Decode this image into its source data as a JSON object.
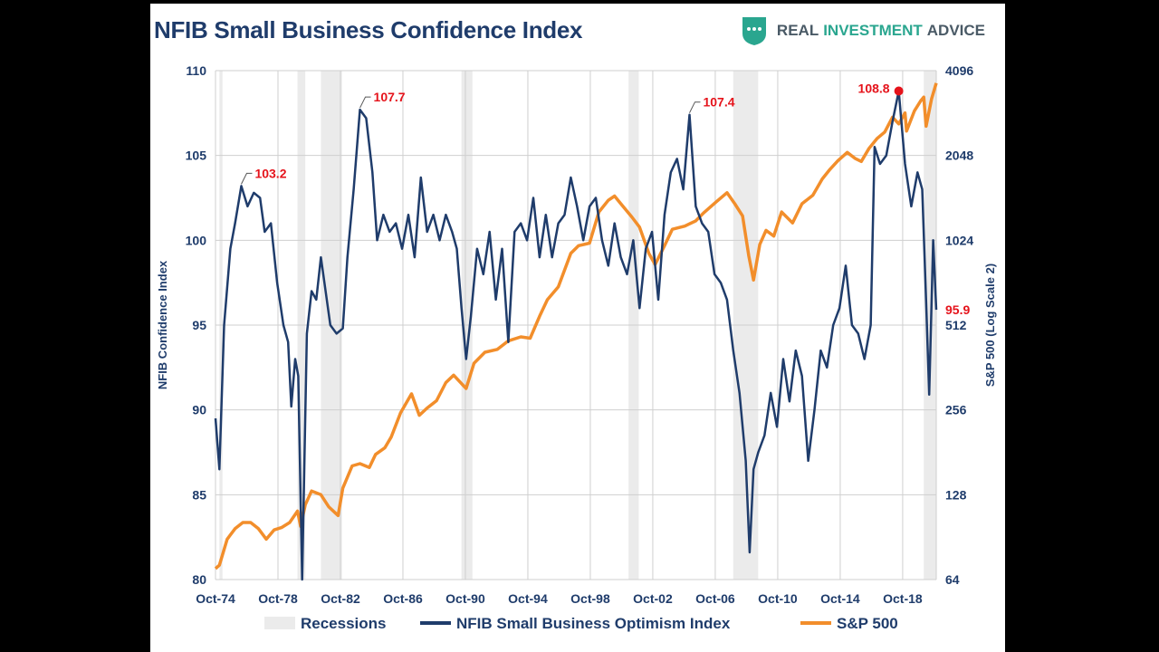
{
  "brand": {
    "word1": "REAL",
    "word2": "INVESTMENT",
    "word3": "ADVICE",
    "accent_color": "#2aa68f",
    "logo_icon": "shield-chat-icon"
  },
  "chart_data": {
    "type": "line",
    "title": "NFIB Small Business Confidence Index",
    "ylabel": "NFIB Confidence Index",
    "y2label": "S&P 500 (Log Scale 2)",
    "xlim": [
      1974.75,
      2020.9
    ],
    "ylim": [
      80,
      110
    ],
    "y2lim": [
      64,
      4096
    ],
    "x_ticks": [
      {
        "label": "Oct-74",
        "x": 1974.75
      },
      {
        "label": "Oct-78",
        "x": 1978.75
      },
      {
        "label": "Oct-82",
        "x": 1982.75
      },
      {
        "label": "Oct-86",
        "x": 1986.75
      },
      {
        "label": "Oct-90",
        "x": 1990.75
      },
      {
        "label": "Oct-94",
        "x": 1994.75
      },
      {
        "label": "Oct-98",
        "x": 1998.75
      },
      {
        "label": "Oct-02",
        "x": 2002.75
      },
      {
        "label": "Oct-06",
        "x": 2006.75
      },
      {
        "label": "Oct-10",
        "x": 2010.75
      },
      {
        "label": "Oct-14",
        "x": 2014.75
      },
      {
        "label": "Oct-18",
        "x": 2018.75
      }
    ],
    "y_ticks": [
      "80",
      "85",
      "90",
      "95",
      "100",
      "105",
      "110"
    ],
    "y2_ticks": [
      "64",
      "128",
      "256",
      "512",
      "1024",
      "2048",
      "4096"
    ],
    "recessions": [
      [
        1975.0,
        1975.2
      ],
      [
        1980.0,
        1980.5
      ],
      [
        1981.5,
        1982.85
      ],
      [
        1990.5,
        1991.2
      ],
      [
        2001.2,
        2001.85
      ],
      [
        2007.9,
        2009.5
      ],
      [
        2020.1,
        2020.9
      ]
    ],
    "series": [
      {
        "name": "NFIB Small Business Optimism Index",
        "color": "#1f3c6b",
        "points": [
          [
            1974.75,
            89.5
          ],
          [
            1975.0,
            86.5
          ],
          [
            1975.3,
            95.0
          ],
          [
            1975.7,
            99.5
          ],
          [
            1976.0,
            101.0
          ],
          [
            1976.4,
            103.2
          ],
          [
            1976.8,
            102.0
          ],
          [
            1977.2,
            102.8
          ],
          [
            1977.6,
            102.5
          ],
          [
            1977.9,
            100.5
          ],
          [
            1978.3,
            101.0
          ],
          [
            1978.7,
            97.5
          ],
          [
            1979.1,
            95.0
          ],
          [
            1979.4,
            94.0
          ],
          [
            1979.6,
            90.2
          ],
          [
            1979.85,
            93.0
          ],
          [
            1980.05,
            92.0
          ],
          [
            1980.3,
            80.0
          ],
          [
            1980.6,
            94.5
          ],
          [
            1980.9,
            97.0
          ],
          [
            1981.2,
            96.5
          ],
          [
            1981.5,
            99.0
          ],
          [
            1981.8,
            97.0
          ],
          [
            1982.1,
            95.0
          ],
          [
            1982.5,
            94.5
          ],
          [
            1982.9,
            94.8
          ],
          [
            1983.2,
            99.0
          ],
          [
            1983.6,
            103.0
          ],
          [
            1984.0,
            107.7
          ],
          [
            1984.4,
            107.2
          ],
          [
            1984.8,
            104.0
          ],
          [
            1985.1,
            100.0
          ],
          [
            1985.5,
            101.5
          ],
          [
            1985.9,
            100.5
          ],
          [
            1986.3,
            101.0
          ],
          [
            1986.7,
            99.5
          ],
          [
            1987.1,
            101.5
          ],
          [
            1987.5,
            99.0
          ],
          [
            1987.9,
            103.7
          ],
          [
            1988.3,
            100.5
          ],
          [
            1988.7,
            101.5
          ],
          [
            1989.1,
            100.0
          ],
          [
            1989.5,
            101.5
          ],
          [
            1989.9,
            100.5
          ],
          [
            1990.2,
            99.5
          ],
          [
            1990.5,
            96.0
          ],
          [
            1990.8,
            93.0
          ],
          [
            1991.1,
            95.5
          ],
          [
            1991.5,
            99.5
          ],
          [
            1991.9,
            98.0
          ],
          [
            1992.3,
            100.5
          ],
          [
            1992.7,
            96.5
          ],
          [
            1993.1,
            99.5
          ],
          [
            1993.5,
            94.0
          ],
          [
            1993.9,
            100.5
          ],
          [
            1994.3,
            101.0
          ],
          [
            1994.7,
            100.0
          ],
          [
            1995.1,
            102.5
          ],
          [
            1995.5,
            99.0
          ],
          [
            1995.9,
            101.5
          ],
          [
            1996.3,
            99.0
          ],
          [
            1996.7,
            101.0
          ],
          [
            1997.1,
            101.5
          ],
          [
            1997.5,
            103.7
          ],
          [
            1997.9,
            102.0
          ],
          [
            1998.3,
            100.0
          ],
          [
            1998.7,
            102.0
          ],
          [
            1999.1,
            102.5
          ],
          [
            1999.5,
            100.0
          ],
          [
            1999.9,
            98.5
          ],
          [
            2000.3,
            101.0
          ],
          [
            2000.7,
            99.0
          ],
          [
            2001.1,
            98.0
          ],
          [
            2001.5,
            100.0
          ],
          [
            2001.9,
            96.0
          ],
          [
            2002.3,
            99.5
          ],
          [
            2002.7,
            100.5
          ],
          [
            2003.1,
            96.5
          ],
          [
            2003.5,
            101.5
          ],
          [
            2003.9,
            104.0
          ],
          [
            2004.3,
            104.8
          ],
          [
            2004.7,
            103.0
          ],
          [
            2005.1,
            107.4
          ],
          [
            2005.5,
            102.0
          ],
          [
            2005.9,
            101.0
          ],
          [
            2006.3,
            100.5
          ],
          [
            2006.7,
            98.0
          ],
          [
            2007.1,
            97.5
          ],
          [
            2007.5,
            96.5
          ],
          [
            2007.9,
            93.5
          ],
          [
            2008.3,
            91.0
          ],
          [
            2008.7,
            87.0
          ],
          [
            2008.95,
            81.6
          ],
          [
            2009.2,
            86.5
          ],
          [
            2009.5,
            87.5
          ],
          [
            2009.9,
            88.5
          ],
          [
            2010.3,
            91.0
          ],
          [
            2010.7,
            89.0
          ],
          [
            2011.1,
            93.0
          ],
          [
            2011.5,
            90.5
          ],
          [
            2011.9,
            93.5
          ],
          [
            2012.3,
            92.0
          ],
          [
            2012.7,
            87.0
          ],
          [
            2013.1,
            90.0
          ],
          [
            2013.5,
            93.5
          ],
          [
            2013.9,
            92.5
          ],
          [
            2014.3,
            95.0
          ],
          [
            2014.7,
            96.0
          ],
          [
            2015.1,
            98.5
          ],
          [
            2015.5,
            95.0
          ],
          [
            2015.9,
            94.5
          ],
          [
            2016.3,
            93.0
          ],
          [
            2016.7,
            95.0
          ],
          [
            2016.95,
            105.5
          ],
          [
            2017.3,
            104.5
          ],
          [
            2017.7,
            105.0
          ],
          [
            2018.1,
            107.0
          ],
          [
            2018.5,
            108.8
          ],
          [
            2018.9,
            104.5
          ],
          [
            2019.3,
            102.0
          ],
          [
            2019.7,
            104.0
          ],
          [
            2020.0,
            103.0
          ],
          [
            2020.25,
            96.4
          ],
          [
            2020.45,
            90.9
          ],
          [
            2020.7,
            100.0
          ],
          [
            2020.9,
            95.9
          ]
        ]
      },
      {
        "name": "S&P 500",
        "color": "#f28e2b",
        "points": [
          [
            1974.75,
            70
          ],
          [
            1975.0,
            72
          ],
          [
            1975.5,
            89
          ],
          [
            1976.0,
            97
          ],
          [
            1976.5,
            102
          ],
          [
            1977.0,
            102
          ],
          [
            1977.5,
            97
          ],
          [
            1978.0,
            89
          ],
          [
            1978.5,
            96
          ],
          [
            1979.0,
            98
          ],
          [
            1979.5,
            102
          ],
          [
            1980.0,
            112
          ],
          [
            1980.2,
            99
          ],
          [
            1980.5,
            118
          ],
          [
            1980.9,
            132
          ],
          [
            1981.5,
            128
          ],
          [
            1982.0,
            116
          ],
          [
            1982.6,
            108
          ],
          [
            1982.9,
            135
          ],
          [
            1983.5,
            162
          ],
          [
            1984.0,
            165
          ],
          [
            1984.6,
            160
          ],
          [
            1985.0,
            178
          ],
          [
            1985.6,
            188
          ],
          [
            1986.0,
            205
          ],
          [
            1986.6,
            250
          ],
          [
            1987.3,
            292
          ],
          [
            1987.8,
            245
          ],
          [
            1988.3,
            260
          ],
          [
            1988.9,
            276
          ],
          [
            1989.5,
            320
          ],
          [
            1990.0,
            340
          ],
          [
            1990.8,
            305
          ],
          [
            1991.3,
            375
          ],
          [
            1992.0,
            410
          ],
          [
            1992.8,
            420
          ],
          [
            1993.5,
            450
          ],
          [
            1994.3,
            465
          ],
          [
            1994.9,
            460
          ],
          [
            1995.5,
            550
          ],
          [
            1996.0,
            630
          ],
          [
            1996.7,
            700
          ],
          [
            1997.5,
            920
          ],
          [
            1998.0,
            980
          ],
          [
            1998.7,
            1000
          ],
          [
            1999.3,
            1290
          ],
          [
            1999.9,
            1420
          ],
          [
            2000.3,
            1470
          ],
          [
            2000.8,
            1360
          ],
          [
            2001.4,
            1240
          ],
          [
            2001.9,
            1140
          ],
          [
            2002.5,
            920
          ],
          [
            2002.9,
            840
          ],
          [
            2003.5,
            980
          ],
          [
            2004.0,
            1120
          ],
          [
            2004.8,
            1150
          ],
          [
            2005.5,
            1200
          ],
          [
            2006.0,
            1280
          ],
          [
            2006.8,
            1400
          ],
          [
            2007.5,
            1510
          ],
          [
            2008.0,
            1380
          ],
          [
            2008.5,
            1250
          ],
          [
            2008.9,
            900
          ],
          [
            2009.2,
            740
          ],
          [
            2009.6,
            990
          ],
          [
            2010.0,
            1110
          ],
          [
            2010.5,
            1060
          ],
          [
            2011.0,
            1290
          ],
          [
            2011.7,
            1180
          ],
          [
            2012.3,
            1380
          ],
          [
            2013.0,
            1480
          ],
          [
            2013.6,
            1690
          ],
          [
            2014.1,
            1830
          ],
          [
            2014.6,
            1960
          ],
          [
            2015.2,
            2100
          ],
          [
            2015.7,
            2000
          ],
          [
            2016.1,
            1950
          ],
          [
            2016.6,
            2170
          ],
          [
            2017.1,
            2350
          ],
          [
            2017.6,
            2480
          ],
          [
            2018.1,
            2800
          ],
          [
            2018.5,
            2650
          ],
          [
            2018.9,
            2900
          ],
          [
            2019.0,
            2500
          ],
          [
            2019.5,
            2950
          ],
          [
            2019.9,
            3200
          ],
          [
            2020.1,
            3300
          ],
          [
            2020.25,
            2600
          ],
          [
            2020.6,
            3250
          ],
          [
            2020.9,
            3700
          ]
        ]
      }
    ],
    "annotations": [
      {
        "label": "103.2",
        "x": 1976.4,
        "y": 103.2,
        "style": "callout"
      },
      {
        "label": "107.7",
        "x": 1984.0,
        "y": 107.7,
        "style": "callout"
      },
      {
        "label": "107.4",
        "x": 2005.1,
        "y": 107.4,
        "style": "callout"
      },
      {
        "label": "108.8",
        "x": 2018.5,
        "y": 108.8,
        "style": "dot"
      },
      {
        "label": "95.9",
        "x": 2020.9,
        "y": 95.9,
        "style": "end-label"
      }
    ],
    "legend": [
      {
        "label": "Recessions",
        "kind": "band",
        "color": "#ebebeb"
      },
      {
        "label": "NFIB Small Business Optimism Index",
        "kind": "line",
        "color": "#1f3c6b"
      },
      {
        "label": "S&P 500",
        "kind": "line",
        "color": "#f28e2b"
      }
    ],
    "legend_position": "bottom",
    "grid": true,
    "annotation_color": "#e5131b"
  }
}
